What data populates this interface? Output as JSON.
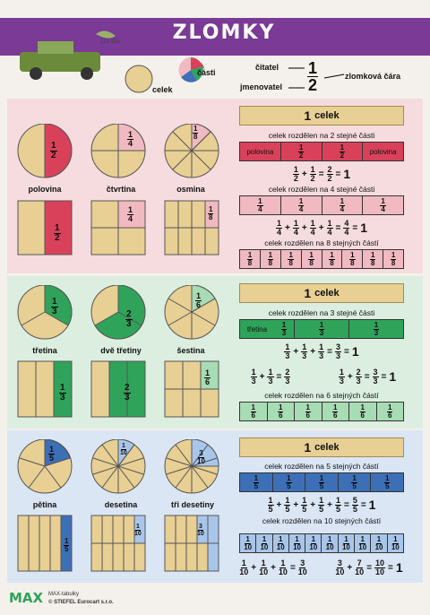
{
  "title": "ZLOMKY",
  "intro": {
    "celek": "celek",
    "casti": "části",
    "citatel": "čitatel",
    "jmenovatel": "jmenovatel",
    "cara": "zlomková čára",
    "n": "1",
    "d": "2"
  },
  "s1": {
    "labels": [
      "polovina",
      "čtvrtina",
      "osmina"
    ],
    "half": {
      "n": "1",
      "d": "2"
    },
    "quarter": {
      "n": "1",
      "d": "4"
    },
    "eighth": {
      "n": "1",
      "d": "8"
    },
    "one": "1",
    "celek": "celek",
    "cap2": "celek rozdělen na 2 stejné části",
    "polovina": "polovina",
    "eq2": [
      "1",
      "2",
      "+",
      "1",
      "2",
      "=",
      "2",
      "2",
      "=",
      "1"
    ],
    "cap4": "celek rozdělen na 4 stejné části",
    "eq4": [
      "1",
      "4",
      "+",
      "1",
      "4",
      "+",
      "1",
      "4",
      "+",
      "1",
      "4",
      "=",
      "4",
      "4",
      "=",
      "1"
    ],
    "cap8": "celek rozdělen na 8 stejných částí"
  },
  "s2": {
    "labels": [
      "třetina",
      "dvě třetiny",
      "šestina"
    ],
    "third": {
      "n": "1",
      "d": "3"
    },
    "twothird": {
      "n": "2",
      "d": "3"
    },
    "sixth": {
      "n": "1",
      "d": "6"
    },
    "cap3": "celek rozdělen na 3 stejné části",
    "tretina": "třetina",
    "eq3": [
      "1",
      "3",
      "+",
      "1",
      "3",
      "+",
      "1",
      "3",
      "=",
      "3",
      "3",
      "=",
      "1"
    ],
    "eqA": [
      "1",
      "3",
      "+",
      "1",
      "3",
      "=",
      "2",
      "3"
    ],
    "eqB": [
      "1",
      "3",
      "+",
      "2",
      "3",
      "=",
      "3",
      "3",
      "=",
      "1"
    ],
    "cap6": "celek rozdělen na 6 stejných částí"
  },
  "s3": {
    "labels": [
      "pětina",
      "desetina",
      "tři desetiny"
    ],
    "fifth": {
      "n": "1",
      "d": "5"
    },
    "tenth": {
      "n": "1",
      "d": "10"
    },
    "threetenth": {
      "n": "3",
      "d": "10"
    },
    "cap5": "celek rozdělen na 5 stejných částí",
    "eq5": [
      "1",
      "5",
      "+",
      "1",
      "5",
      "+",
      "1",
      "5",
      "+",
      "1",
      "5",
      "+",
      "1",
      "5",
      "=",
      "5",
      "5",
      "=",
      "1"
    ],
    "cap10": "celek rozdělen na 10 stejných částí",
    "eqC": [
      "1",
      "10",
      "+",
      "1",
      "10",
      "+",
      "1",
      "10",
      "=",
      "3",
      "10"
    ],
    "eqD": [
      "3",
      "10",
      "+",
      "7",
      "10",
      "=",
      "10",
      "10",
      "=",
      "1"
    ]
  },
  "footer": {
    "brand": "MAX",
    "line1": "MAX-tabulky",
    "line2": "© STIEFEL Eurocart s.r.o."
  },
  "colors": {
    "purple": "#7a3a95",
    "red": "#d9415a",
    "pink": "#f1b9c1",
    "green": "#2fa35a",
    "blue": "#3d6fb6",
    "lightblue": "#a9c6ea",
    "tan": "#e8cf93"
  }
}
